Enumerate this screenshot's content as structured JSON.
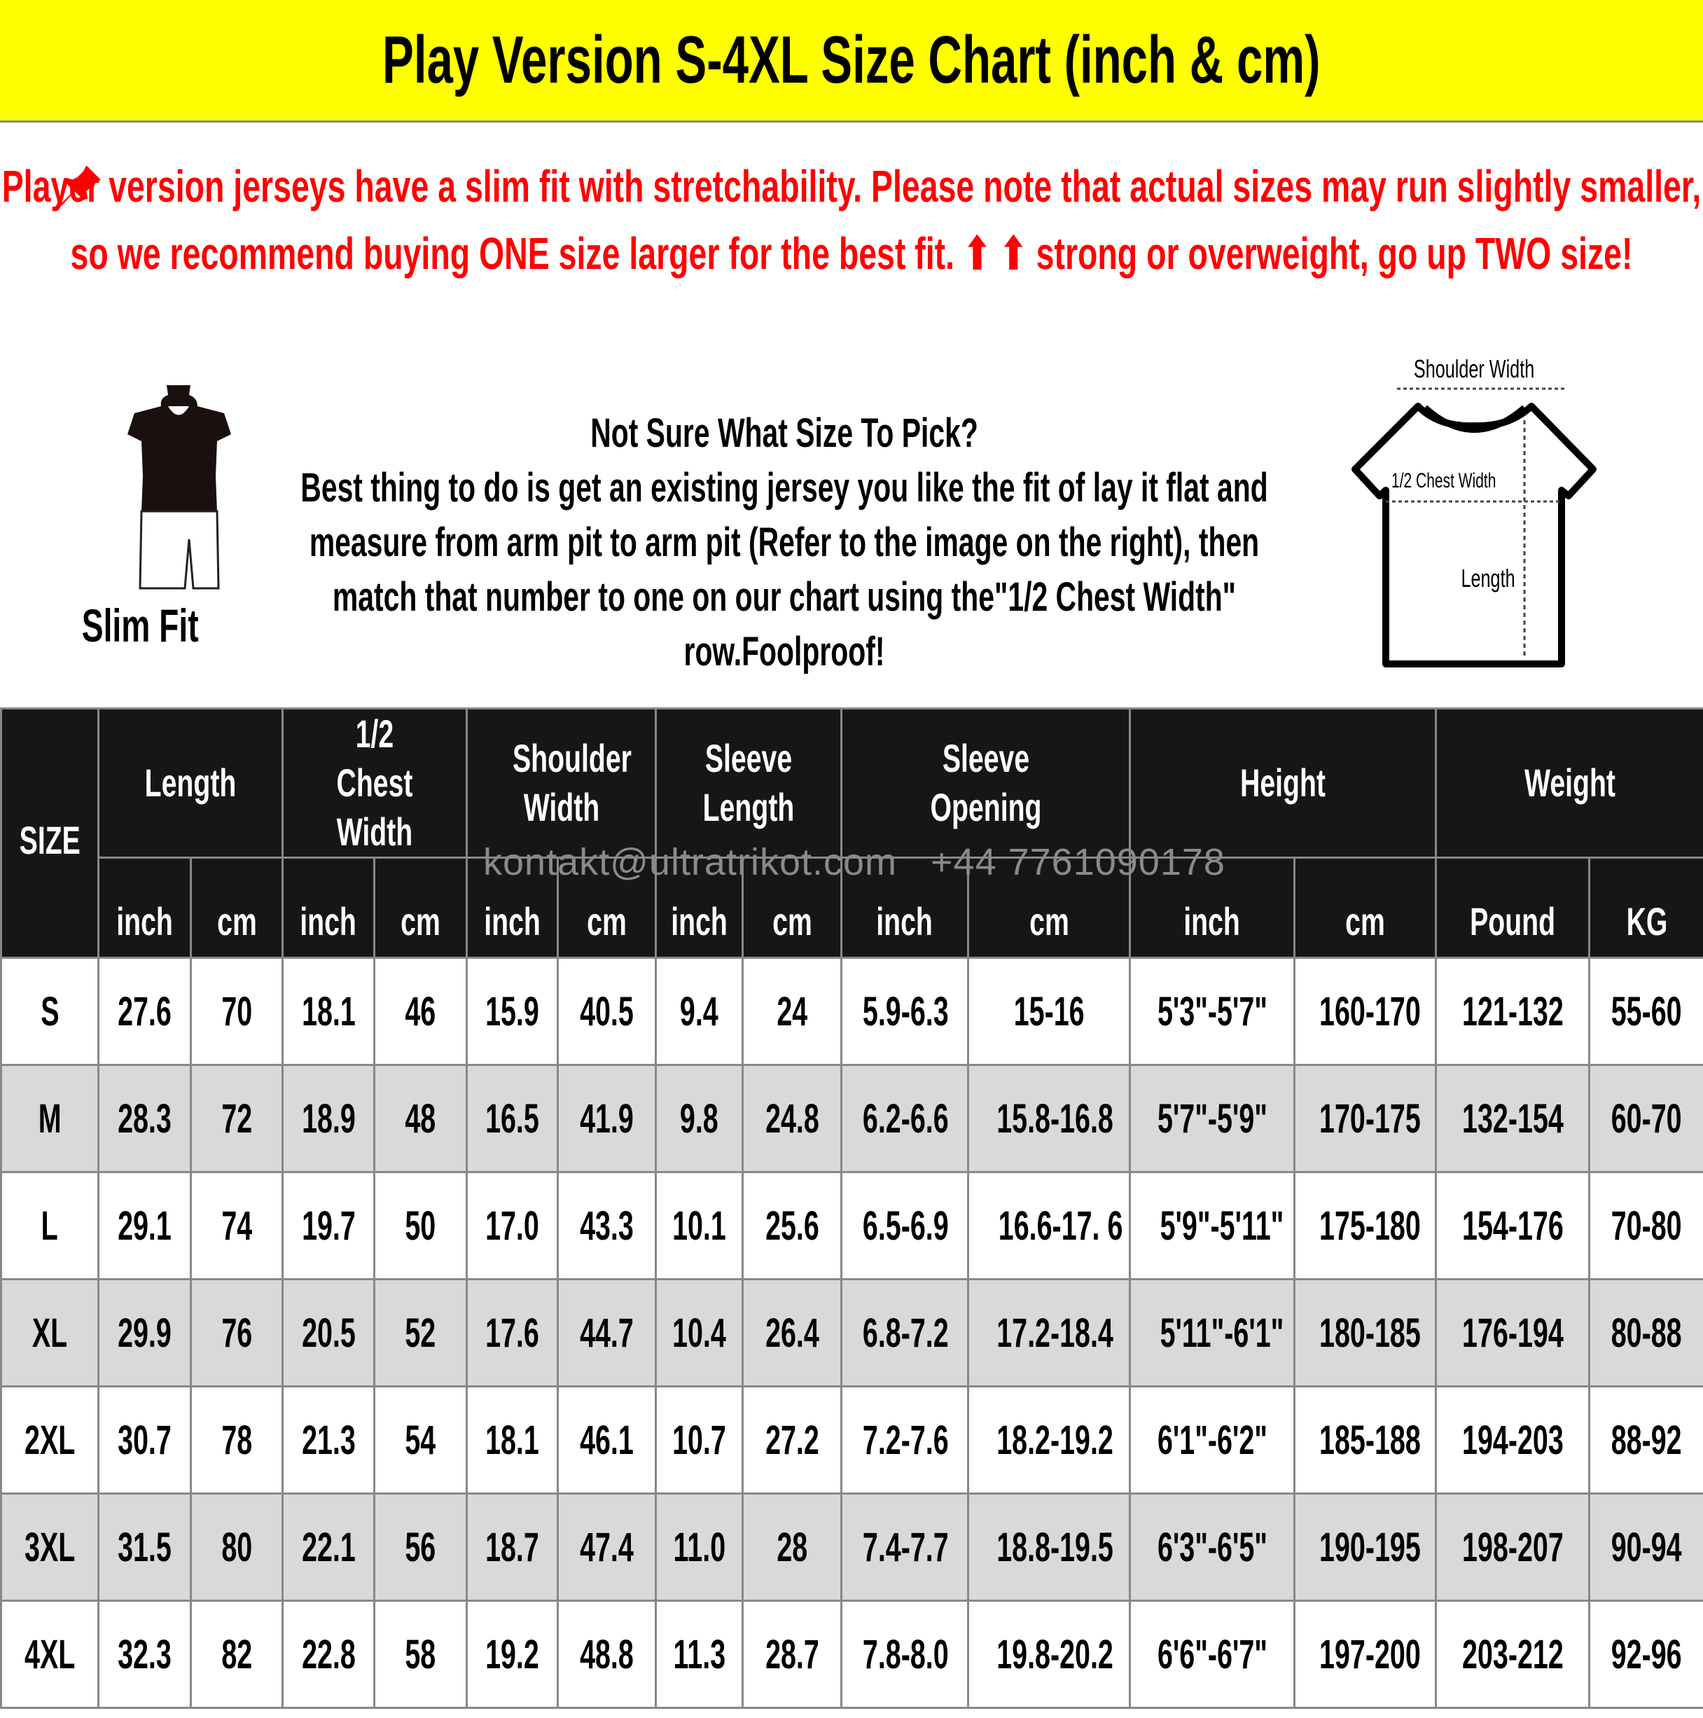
{
  "title": "Play Version S-4XL Size Chart (inch & cm)",
  "notice": {
    "icon": "pushpin-icon",
    "text": "Player version jerseys have a slim fit with stretchability. Please note that actual sizes may run slightly smaller, so we recommend buying ONE size larger for the best fit. ⬆ ⬆ strong or overweight, go up TWO size!",
    "color": "#ff0000"
  },
  "advice": {
    "heading": "Not Sure What Size To Pick?",
    "body": "Best thing to do is get an existing jersey you like the fit of lay it flat and measure from arm pit to arm pit (Refer to the image on the right), then match that number to one on our chart using the\"1/2 Chest Width\" row.Foolproof!"
  },
  "slim_fit_label": "Slim Fit",
  "diagram": {
    "shoulder_width": "Shoulder Width",
    "chest_width": "1/2 Chest Width",
    "length": "Length"
  },
  "watermark": "kontakt@ultratrikot.com   +44 7761090178",
  "table": {
    "size_header": "SIZE",
    "groups": [
      "Length",
      "1/2 Chest Width",
      "Shoulder Width",
      "Sleeve Length",
      "Sleeve Opening",
      "Height",
      "Weight"
    ],
    "units": [
      "inch",
      "cm",
      "inch",
      "cm",
      "inch",
      "cm",
      "inch",
      "cm",
      "inch",
      "cm",
      "inch",
      "cm",
      "Pound",
      "KG"
    ],
    "rows": [
      [
        "S",
        "27.6",
        "70",
        "18.1",
        "46",
        "15.9",
        "40.5",
        "9.4",
        "24",
        "5.9-6.3",
        "15-16",
        "5'3\"-5'7\"",
        "160-170",
        "121-132",
        "55-60"
      ],
      [
        "M",
        "28.3",
        "72",
        "18.9",
        "48",
        "16.5",
        "41.9",
        "9.8",
        "24.8",
        "6.2-6.6",
        "15.8-16.8",
        "5'7\"-5'9\"",
        "170-175",
        "132-154",
        "60-70"
      ],
      [
        "L",
        "29.1",
        "74",
        "19.7",
        "50",
        "17.0",
        "43.3",
        "10.1",
        "25.6",
        "6.5-6.9",
        "16.6-17. 6",
        "5'9\"-5'11\"",
        "175-180",
        "154-176",
        "70-80"
      ],
      [
        "XL",
        "29.9",
        "76",
        "20.5",
        "52",
        "17.6",
        "44.7",
        "10.4",
        "26.4",
        "6.8-7.2",
        "17.2-18.4",
        "5'11\"-6'1\"",
        "180-185",
        "176-194",
        "80-88"
      ],
      [
        "2XL",
        "30.7",
        "78",
        "21.3",
        "54",
        "18.1",
        "46.1",
        "10.7",
        "27.2",
        "7.2-7.6",
        "18.2-19.2",
        "6'1\"-6'2\"",
        "185-188",
        "194-203",
        "88-92"
      ],
      [
        "3XL",
        "31.5",
        "80",
        "22.1",
        "56",
        "18.7",
        "47.4",
        "11.0",
        "28",
        "7.4-7.7",
        "18.8-19.5",
        "6'3\"-6'5\"",
        "190-195",
        "198-207",
        "90-94"
      ],
      [
        "4XL",
        "32.3",
        "82",
        "22.8",
        "58",
        "19.2",
        "48.8",
        "11.3",
        "28.7",
        "7.8-8.0",
        "19.8-20.2",
        "6'6\"-6'7\"",
        "197-200",
        "203-212",
        "92-96"
      ]
    ]
  },
  "colors": {
    "title_bg": "#ffff00",
    "header_bg": "#161616",
    "alt_row": "#d9d9d9"
  }
}
